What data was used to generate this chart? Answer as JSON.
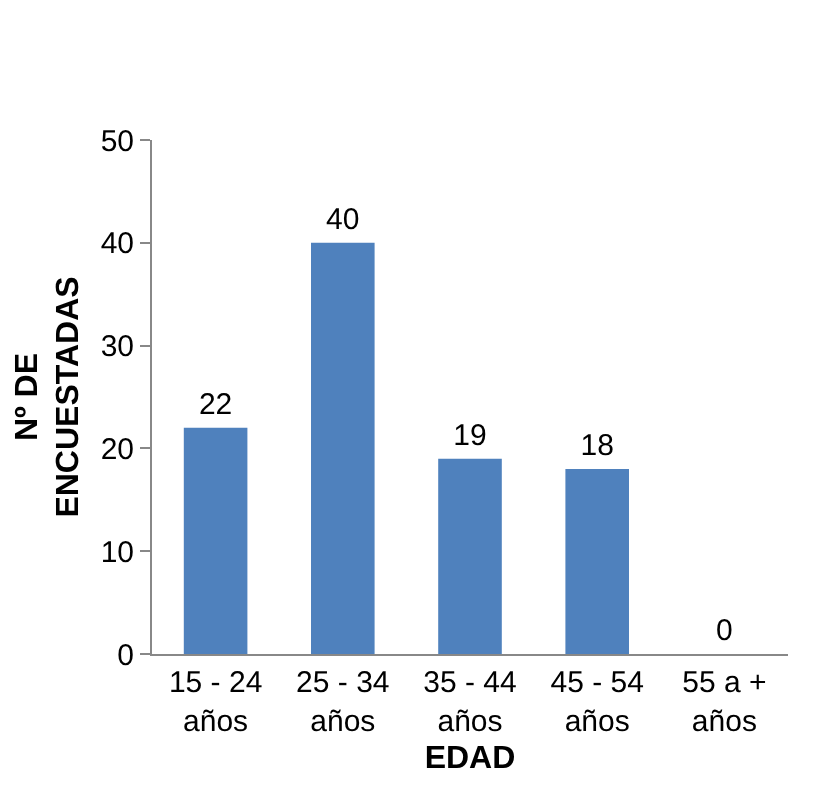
{
  "chart_data": {
    "type": "bar",
    "xlabel": "EDAD",
    "ylabel": "Nº DE ENCUESTADAS",
    "categories": [
      "15 - 24 años",
      "25 - 34 años",
      "35 - 44 años",
      "45 - 54 años",
      "55 a + años"
    ],
    "values": [
      22,
      40,
      19,
      18,
      0
    ],
    "color": "#4f81bd",
    "ylim": [
      0,
      50
    ],
    "yticks": [
      0,
      10,
      20,
      30,
      40,
      50
    ],
    "grid": false,
    "data_labels": true
  }
}
